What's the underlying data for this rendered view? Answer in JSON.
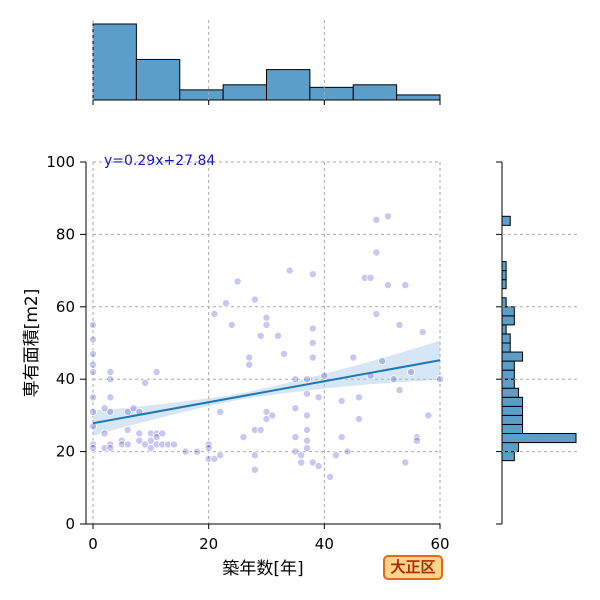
{
  "chart_data": {
    "type": "scatter",
    "xlabel": "築年数[年]",
    "ylabel": "専有面積[m2]",
    "xlim": [
      0,
      60
    ],
    "ylim": [
      0,
      100
    ],
    "xticks": [
      0,
      20,
      40,
      60
    ],
    "yticks": [
      0,
      20,
      40,
      60,
      80,
      100
    ],
    "grid": true,
    "equation": "y=0.29x+27.84",
    "regression": {
      "slope": 0.29,
      "intercept": 27.84
    },
    "colors": {
      "point": "#3b3bd1",
      "line": "#1f77b4",
      "band": "#a6c8e6",
      "hist": "#5b9ec9"
    },
    "points": [
      [
        0,
        55
      ],
      [
        0,
        51
      ],
      [
        0,
        47
      ],
      [
        0,
        44
      ],
      [
        0,
        42
      ],
      [
        0,
        35
      ],
      [
        0,
        31
      ],
      [
        0,
        27
      ],
      [
        0,
        22
      ],
      [
        0,
        21
      ],
      [
        2,
        21
      ],
      [
        2,
        25
      ],
      [
        2,
        32
      ],
      [
        3,
        42
      ],
      [
        3,
        40
      ],
      [
        3,
        35
      ],
      [
        3,
        31
      ],
      [
        3,
        22
      ],
      [
        3,
        21
      ],
      [
        5,
        23
      ],
      [
        5,
        22
      ],
      [
        6,
        22
      ],
      [
        6,
        26
      ],
      [
        6,
        31
      ],
      [
        7,
        32
      ],
      [
        8,
        25
      ],
      [
        8,
        23
      ],
      [
        8,
        31
      ],
      [
        9,
        39
      ],
      [
        9,
        22
      ],
      [
        10,
        25
      ],
      [
        10,
        23
      ],
      [
        10,
        21
      ],
      [
        11,
        25
      ],
      [
        11,
        24
      ],
      [
        11,
        22
      ],
      [
        11,
        42
      ],
      [
        12,
        25
      ],
      [
        12,
        22
      ],
      [
        13,
        22
      ],
      [
        14,
        22
      ],
      [
        16,
        20
      ],
      [
        18,
        20
      ],
      [
        20,
        22
      ],
      [
        20,
        21
      ],
      [
        20,
        18
      ],
      [
        21,
        18
      ],
      [
        21,
        58
      ],
      [
        22,
        31
      ],
      [
        22,
        19
      ],
      [
        23,
        61
      ],
      [
        24,
        55
      ],
      [
        25,
        67
      ],
      [
        26,
        24
      ],
      [
        27,
        46
      ],
      [
        27,
        44
      ],
      [
        28,
        62
      ],
      [
        28,
        26
      ],
      [
        28,
        19
      ],
      [
        28,
        15
      ],
      [
        29,
        52
      ],
      [
        29,
        26
      ],
      [
        30,
        57
      ],
      [
        30,
        55
      ],
      [
        30,
        31
      ],
      [
        30,
        29
      ],
      [
        31,
        30
      ],
      [
        32,
        52
      ],
      [
        33,
        47
      ],
      [
        34,
        70
      ],
      [
        35,
        40
      ],
      [
        35,
        32
      ],
      [
        35,
        24
      ],
      [
        35,
        20
      ],
      [
        36,
        19
      ],
      [
        36,
        17
      ],
      [
        37,
        40
      ],
      [
        37,
        36
      ],
      [
        37,
        30
      ],
      [
        37,
        26
      ],
      [
        37,
        23
      ],
      [
        37,
        21
      ],
      [
        38,
        69
      ],
      [
        38,
        54
      ],
      [
        38,
        50
      ],
      [
        38,
        46
      ],
      [
        38,
        17
      ],
      [
        39,
        35
      ],
      [
        39,
        16
      ],
      [
        40,
        41
      ],
      [
        41,
        13
      ],
      [
        42,
        19
      ],
      [
        43,
        34
      ],
      [
        43,
        24
      ],
      [
        44,
        20
      ],
      [
        45,
        46
      ],
      [
        46,
        29
      ],
      [
        46,
        35
      ],
      [
        47,
        68
      ],
      [
        48,
        68
      ],
      [
        48,
        41
      ],
      [
        49,
        75
      ],
      [
        49,
        58
      ],
      [
        49,
        84
      ],
      [
        50,
        45
      ],
      [
        51,
        85
      ],
      [
        51,
        66
      ],
      [
        52,
        40
      ],
      [
        53,
        55
      ],
      [
        53,
        37
      ],
      [
        54,
        66
      ],
      [
        54,
        17
      ],
      [
        55,
        42
      ],
      [
        56,
        24
      ],
      [
        56,
        23
      ],
      [
        57,
        53
      ],
      [
        58,
        30
      ],
      [
        60,
        40
      ]
    ],
    "x_hist": {
      "bins": [
        0,
        7.5,
        15,
        22.5,
        30,
        37.5,
        45,
        52.5,
        60
      ],
      "counts": [
        30,
        16,
        4,
        6,
        12,
        5,
        6,
        2
      ]
    },
    "y_hist": {
      "bins": [
        0,
        2.5,
        5,
        7.5,
        10,
        12.5,
        15,
        17.5,
        20,
        22.5,
        25,
        27.5,
        30,
        32.5,
        35,
        37.5,
        40,
        42.5,
        45,
        47.5,
        50,
        52.5,
        55,
        57.5,
        60,
        62.5,
        65,
        67.5,
        70,
        72.5,
        75,
        77.5,
        80,
        82.5,
        85,
        87.5
      ],
      "counts": [
        0,
        0,
        0,
        0,
        0,
        0,
        0,
        3,
        4,
        18,
        5,
        5,
        5,
        5,
        4,
        3,
        3,
        3,
        5,
        2,
        2,
        1,
        3,
        3,
        1,
        0,
        1,
        1,
        1,
        0,
        0,
        0,
        0,
        2,
        0,
        0
      ]
    }
  },
  "badge": {
    "label": "大正区",
    "bg": "#ffd58a",
    "border": "#e46a16",
    "text_color": "#b02a05"
  }
}
